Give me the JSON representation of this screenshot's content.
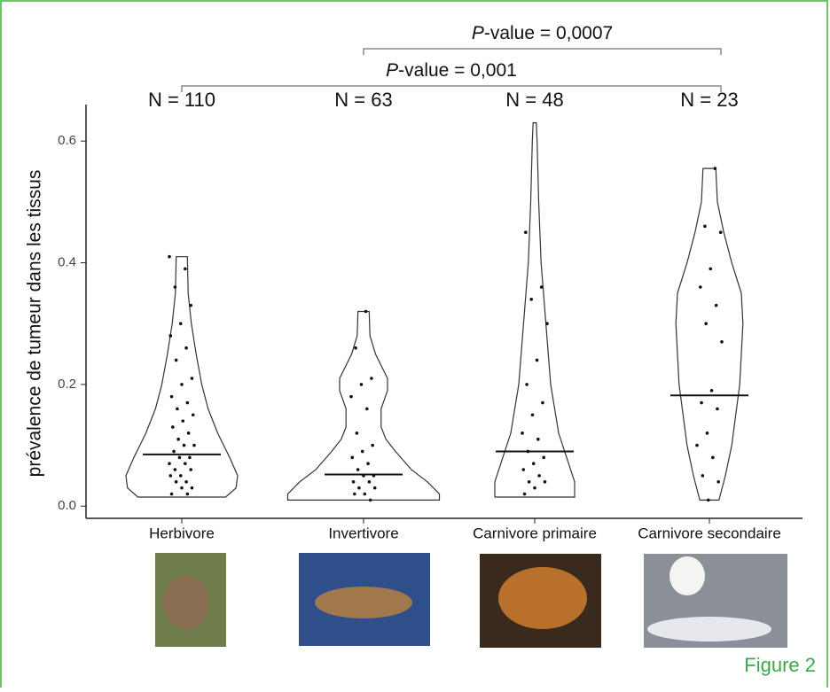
{
  "chart_data": {
    "type": "violin",
    "y_label": "prévalence de tumeur dans les tissus",
    "categories": [
      "Herbivore",
      "Invertivore",
      "Carnivore primaire",
      "Carnivore secondaire"
    ],
    "n_labels": [
      "N = 110",
      "N = 63",
      "N = 48",
      "N = 23"
    ],
    "ylim": [
      -0.02,
      0.66
    ],
    "yticks": [
      {
        "value": 0,
        "label": "0.0"
      },
      {
        "value": 0.2,
        "label": "0.2"
      },
      {
        "value": 0.4,
        "label": "0.4"
      },
      {
        "value": 0.6,
        "label": "0.6"
      }
    ],
    "medians": [
      0.085,
      0.052,
      0.09,
      0.182
    ],
    "violins": [
      {
        "y": [
          0.015,
          0.03,
          0.05,
          0.08,
          0.12,
          0.16,
          0.2,
          0.25,
          0.3,
          0.35,
          0.41
        ],
        "width": [
          0.55,
          0.68,
          0.7,
          0.6,
          0.45,
          0.33,
          0.25,
          0.18,
          0.12,
          0.08,
          0.07
        ]
      },
      {
        "y": [
          0.01,
          0.02,
          0.04,
          0.06,
          0.09,
          0.11,
          0.13,
          0.16,
          0.19,
          0.21,
          0.25,
          0.28,
          0.32
        ],
        "width": [
          0.95,
          0.95,
          0.8,
          0.6,
          0.4,
          0.28,
          0.22,
          0.22,
          0.3,
          0.3,
          0.15,
          0.08,
          0.07
        ]
      },
      {
        "y": [
          0.015,
          0.04,
          0.08,
          0.12,
          0.2,
          0.3,
          0.4,
          0.5,
          0.6,
          0.63
        ],
        "width": [
          0.5,
          0.5,
          0.4,
          0.3,
          0.2,
          0.14,
          0.08,
          0.05,
          0.03,
          0.02
        ]
      },
      {
        "y": [
          0.01,
          0.05,
          0.1,
          0.2,
          0.3,
          0.35,
          0.4,
          0.45,
          0.5,
          0.555
        ],
        "width": [
          0.12,
          0.2,
          0.28,
          0.38,
          0.42,
          0.4,
          0.28,
          0.18,
          0.1,
          0.08
        ]
      }
    ],
    "points": [
      [
        0.41,
        0.39,
        0.36,
        0.33,
        0.3,
        0.28,
        0.26,
        0.24,
        0.21,
        0.2,
        0.18,
        0.17,
        0.16,
        0.15,
        0.14,
        0.13,
        0.12,
        0.11,
        0.1,
        0.1,
        0.09,
        0.08,
        0.08,
        0.07,
        0.07,
        0.06,
        0.06,
        0.05,
        0.05,
        0.04,
        0.04,
        0.03,
        0.03,
        0.02,
        0.02
      ],
      [
        0.32,
        0.26,
        0.21,
        0.2,
        0.18,
        0.16,
        0.12,
        0.1,
        0.09,
        0.08,
        0.07,
        0.06,
        0.05,
        0.05,
        0.04,
        0.04,
        0.03,
        0.03,
        0.02,
        0.02,
        0.01
      ],
      [
        0.45,
        0.36,
        0.34,
        0.3,
        0.24,
        0.2,
        0.17,
        0.15,
        0.12,
        0.11,
        0.09,
        0.08,
        0.07,
        0.06,
        0.05,
        0.04,
        0.04,
        0.03,
        0.02
      ],
      [
        0.555,
        0.46,
        0.45,
        0.39,
        0.36,
        0.33,
        0.3,
        0.27,
        0.19,
        0.17,
        0.16,
        0.12,
        0.1,
        0.08,
        0.05,
        0.04,
        0.01
      ]
    ],
    "brackets": [
      {
        "between": [
          1,
          3
        ],
        "label_italic": "P",
        "label": "-value = 0,0007"
      },
      {
        "between": [
          0,
          3
        ],
        "label_italic": "P",
        "label": "-value = 0,001"
      }
    ],
    "figure_label": "Figure 2"
  }
}
